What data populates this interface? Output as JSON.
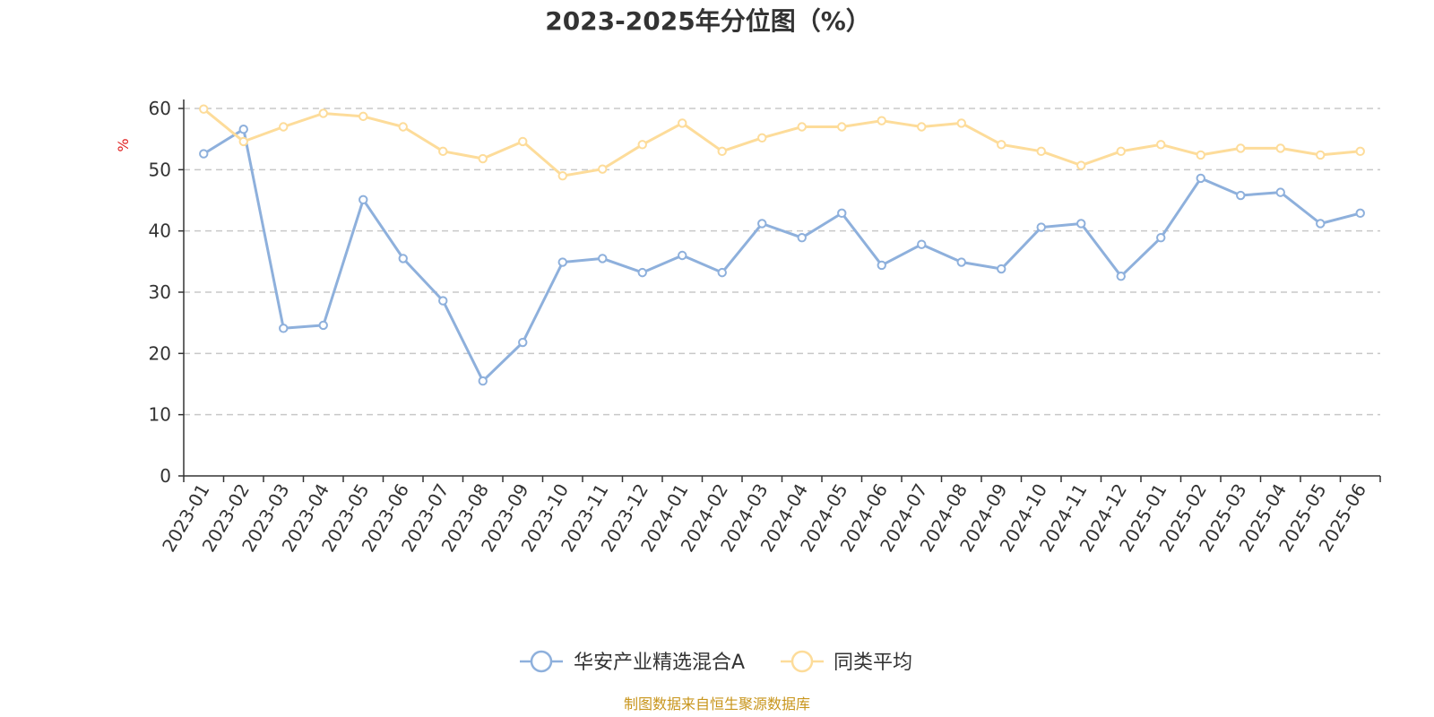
{
  "colors": {
    "series_a": "#8eb0dc",
    "series_b": "#fddc9a",
    "unit": "#e02020",
    "source": "#c8951c",
    "grid": "#c8c8c8",
    "axis": "#333333"
  },
  "footer": {
    "source": "制图数据来自恒生聚源数据库"
  },
  "chart_data": {
    "type": "line",
    "title": "2023-2025年分位图（%）",
    "ylabel": "%",
    "ylim": [
      0,
      60
    ],
    "yticks": [
      0,
      10,
      20,
      30,
      40,
      50,
      60
    ],
    "grid": "horizontal dashed",
    "legend": "bottom-center",
    "categories": [
      "2023-01",
      "2023-02",
      "2023-03",
      "2023-04",
      "2023-05",
      "2023-06",
      "2023-07",
      "2023-08",
      "2023-09",
      "2023-10",
      "2023-11",
      "2023-12",
      "2024-01",
      "2024-02",
      "2024-03",
      "2024-04",
      "2024-05",
      "2024-06",
      "2024-07",
      "2024-08",
      "2024-09",
      "2024-10",
      "2024-11",
      "2024-12",
      "2025-01",
      "2025-02",
      "2025-03",
      "2025-04",
      "2025-05",
      "2025-06"
    ],
    "series": [
      {
        "name": "华安产业精选混合A",
        "color": "#8eb0dc",
        "values": [
          52.6,
          56.6,
          24.1,
          24.6,
          45.1,
          35.5,
          28.6,
          15.5,
          21.8,
          34.9,
          35.5,
          33.2,
          36.0,
          33.2,
          41.2,
          38.9,
          42.9,
          34.4,
          37.8,
          34.9,
          33.8,
          40.6,
          41.2,
          32.6,
          38.9,
          48.6,
          45.8,
          46.3,
          41.2,
          42.9
        ]
      },
      {
        "name": "同类平均",
        "color": "#fddc9a",
        "values": [
          59.9,
          54.6,
          57.0,
          59.2,
          58.7,
          57.0,
          53.0,
          51.8,
          54.6,
          49.0,
          50.1,
          54.1,
          57.6,
          53.0,
          55.2,
          57.0,
          57.0,
          58.0,
          57.0,
          57.6,
          54.1,
          53.0,
          50.7,
          53.0,
          54.1,
          52.4,
          53.5,
          53.5,
          52.4,
          53.0
        ]
      }
    ]
  }
}
